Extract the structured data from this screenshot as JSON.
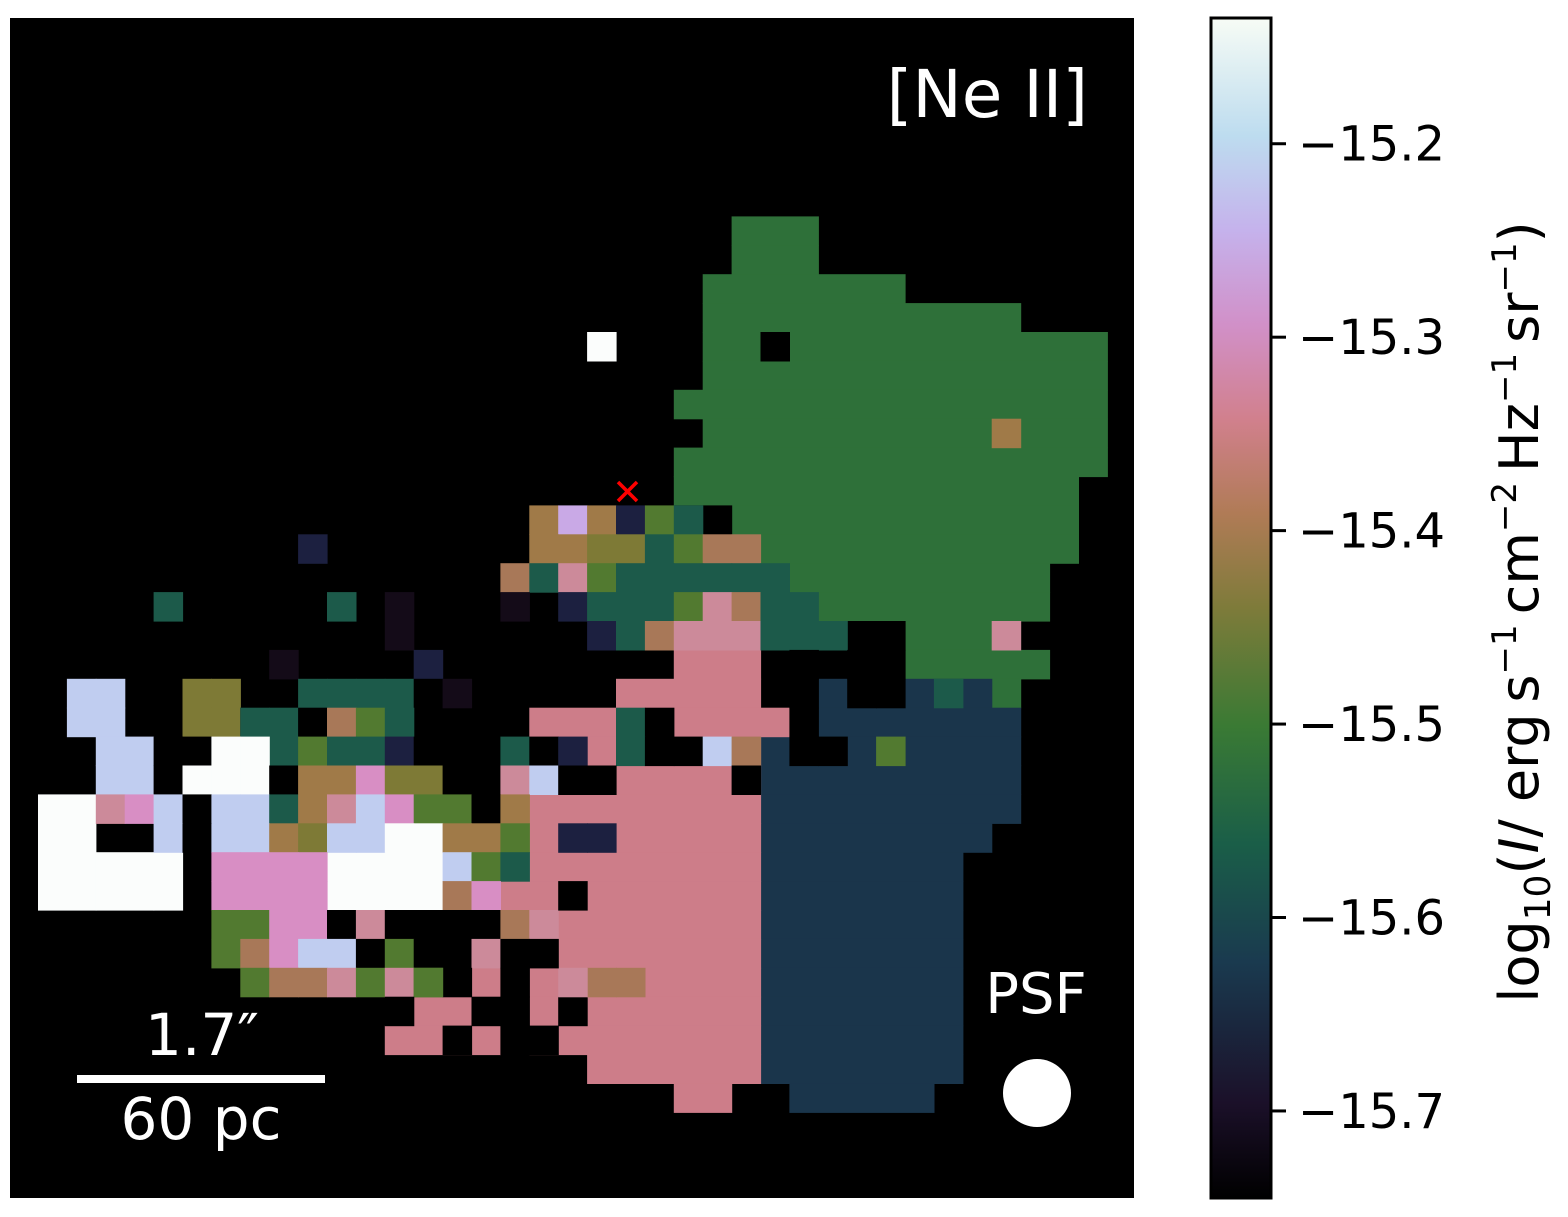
{
  "chart_data": {
    "type": "heatmap",
    "title": "[Ne II]",
    "line_label": "[Ne II]",
    "colormap": "cubehelix",
    "colorbar": {
      "label": "log₁₀(I/ erg s⁻¹ cm⁻² Hz⁻¹ sr⁻¹)",
      "label_parts": {
        "prefix": "log",
        "sub": "10",
        "open": "(",
        "ital": "I",
        "slash": "/ erg s",
        "sup1": "−1",
        "mid1": "cm",
        "sup2": "−2",
        "mid2": "Hz",
        "sup3": "−1",
        "mid3": "sr",
        "sup4": "−1",
        "close": ")"
      },
      "vmin": -15.745,
      "vmax": -15.135,
      "ticks": [
        -15.2,
        -15.3,
        -15.4,
        -15.5,
        -15.6,
        -15.7
      ],
      "tick_labels": [
        "−15.2",
        "−15.3",
        "−15.4",
        "−15.5",
        "−15.6",
        "−15.7"
      ]
    },
    "scale_bar": {
      "angular": "1.7″",
      "physical": "60 pc"
    },
    "psf_label": "PSF",
    "center_marker": "×",
    "grid": "off",
    "regions": [
      {
        "name": "green-lobe",
        "value": -15.555,
        "color": "#2e7039"
      },
      {
        "name": "navy-lobe",
        "value": -15.63,
        "color": "#1a354b"
      },
      {
        "name": "pink-lobe",
        "value": -15.37,
        "color": "#cd7d89"
      },
      {
        "name": "white-knot",
        "value": -15.15,
        "color": "#fbfdfc"
      }
    ],
    "pixel_values": [
      {
        "value": -15.43,
        "color": "#a07a48"
      },
      {
        "value": -15.3,
        "color": "#c9a9e6"
      },
      {
        "value": -15.49,
        "color": "#7e7a36"
      },
      {
        "value": -15.67,
        "color": "#1c2040"
      },
      {
        "value": -15.52,
        "color": "#527a30"
      },
      {
        "value": -15.58,
        "color": "#1c5a4a"
      },
      {
        "value": -15.41,
        "color": "#a87858"
      },
      {
        "value": -15.36,
        "color": "#cc8a9a"
      },
      {
        "value": -15.33,
        "color": "#d88ec4"
      },
      {
        "value": -15.26,
        "color": "#c0cdf0"
      },
      {
        "value": -15.7,
        "color": "#140b18"
      }
    ],
    "colors": {
      "background": "#000000",
      "marker": "#ff0000",
      "annotation": "#ffffff"
    }
  }
}
